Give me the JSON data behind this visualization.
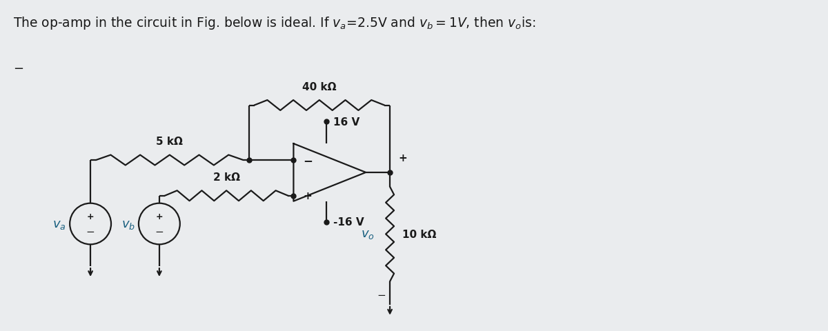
{
  "title_text": "The op-amp in the circuit in Fig. below is ideal. If $v_a$=2.5V and $v_b = 1V$, then $v_o$is:",
  "bg_color": "#eaecee",
  "fg_color": "#1a1a1a",
  "label_color": "#1a6080",
  "resistor_5k_label": "5 kΩ",
  "resistor_2k_label": "2 kΩ",
  "resistor_40k_label": "40 kΩ",
  "resistor_10k_label": "10 kΩ",
  "vcc_label": "16 V",
  "vee_label": "-16 V",
  "va_label": "$v_a$",
  "vb_label": "$v_b$",
  "vo_label": "$v_o$"
}
